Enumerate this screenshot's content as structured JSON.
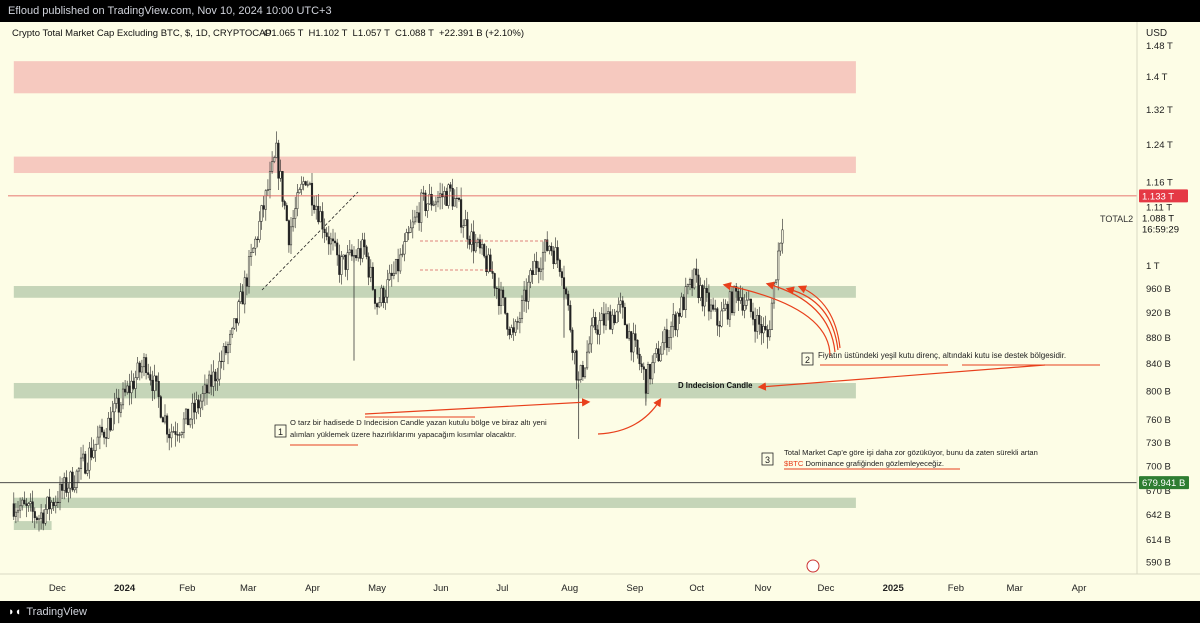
{
  "publisher": "Efloud published on TradingView.com, Nov 10, 2024 10:00 UTC+3",
  "brand": "TradingView",
  "legend": {
    "symbol": "Crypto Total Market Cap Excluding BTC, $, 1D, CRYPTOCAP",
    "ohlc": "O1.065 T  H1.102 T  L1.057 T  C1.088 T  +22.391 B (+2.10%)"
  },
  "currency_label": "USD",
  "series_label": "TOTAL2",
  "price_tags": {
    "resistance": "1.133 T",
    "current": "1.088 T",
    "countdown": "16:59:29",
    "support": "679.941 B"
  },
  "annotations": {
    "note1_num": "1",
    "note1_line1": "O tarz bir hadisede D Indecision Candle yazan kutulu bölge ve biraz altı yeni",
    "note1_line2": "alımları yüklemek üzere hazırlıklarımı yapacağım kısımlar olacaktır.",
    "note2_num": "2",
    "note2_text": "Fiyatın üstündeki yeşil kutu direnç, altındaki kutu ise destek bölgesidir.",
    "note3_num": "3",
    "note3_line1": "Total Market Cap'e göre işi daha zor gözüküyor, bunu da zaten sürekli artan",
    "note3_tag": "$BTC",
    "note3_line2": " Dominance grafiğinden gözlemleyeceğiz.",
    "indecision": "D Indecision Candle"
  },
  "colors": {
    "up": "#1a1a1a",
    "down": "#1a1a1a",
    "red_zone": "#f6c9bf",
    "green_zone": "#c5d5b8",
    "arrow": "#e8401c",
    "resistance_line": "#e04a4a",
    "tag_red": "#e53945",
    "tag_green": "#2e7d32"
  },
  "chart_data": {
    "type": "candlestick",
    "title": "Crypto Total Market Cap Excluding BTC, $, 1D, CRYPTOCAP",
    "scale": "log",
    "y_unit": "USD",
    "y_ticks": [
      "1.48 T",
      "1.4 T",
      "1.32 T",
      "1.24 T",
      "1.16 T",
      "1.11 T",
      "1.088 T",
      "1 T",
      "960 B",
      "920 B",
      "880 B",
      "840 B",
      "800 B",
      "760 B",
      "730 B",
      "700 B",
      "670 B",
      "642 B",
      "614 B",
      "590 B"
    ],
    "y_tick_values": [
      1480,
      1400,
      1320,
      1240,
      1160,
      1110,
      1088,
      1000,
      960,
      920,
      880,
      840,
      800,
      760,
      730,
      700,
      670,
      642,
      614,
      590
    ],
    "x_ticks": [
      "Dec",
      "2024",
      "Feb",
      "Mar",
      "Apr",
      "May",
      "Jun",
      "Jul",
      "Aug",
      "Sep",
      "Oct",
      "Nov",
      "Dec",
      "2025",
      "Feb",
      "Mar",
      "Apr"
    ],
    "x_tick_dates": [
      "2023-12-01",
      "2024-01-01",
      "2024-02-01",
      "2024-03-01",
      "2024-04-01",
      "2024-05-01",
      "2024-06-01",
      "2024-07-01",
      "2024-08-01",
      "2024-09-01",
      "2024-10-01",
      "2024-11-01",
      "2024-12-01",
      "2025-01-01",
      "2025-02-01",
      "2025-03-01",
      "2025-04-01"
    ],
    "x_range": [
      "2023-11-10",
      "2025-04-15"
    ],
    "zones": [
      {
        "kind": "resistance",
        "from": "2023-11-10",
        "to": "2024-12-15",
        "low": 1360,
        "high": 1440
      },
      {
        "kind": "resistance",
        "from": "2023-11-10",
        "to": "2024-12-15",
        "low": 1180,
        "high": 1215
      },
      {
        "kind": "range",
        "from": "2023-11-10",
        "to": "2024-12-15",
        "low": 945,
        "high": 965
      },
      {
        "kind": "support",
        "from": "2023-11-10",
        "to": "2024-12-15",
        "low": 790,
        "high": 812
      },
      {
        "kind": "support",
        "from": "2023-11-10",
        "to": "2024-12-15",
        "low": 650,
        "high": 662
      },
      {
        "kind": "support",
        "from": "2023-11-10",
        "to": "2023-11-28",
        "low": 625,
        "high": 635
      }
    ],
    "levels": [
      {
        "label": "1.133 T",
        "value": 1133
      },
      {
        "label": "679.941 B",
        "value": 679.941
      }
    ],
    "ohlc_anchors": [
      [
        "2023-11-10",
        655
      ],
      [
        "2023-11-22",
        640
      ],
      [
        "2023-12-10",
        690
      ],
      [
        "2023-12-26",
        760
      ],
      [
        "2024-01-06",
        815
      ],
      [
        "2024-01-12",
        845
      ],
      [
        "2024-01-23",
        745
      ],
      [
        "2024-02-01",
        760
      ],
      [
        "2024-02-10",
        800
      ],
      [
        "2024-02-22",
        880
      ],
      [
        "2024-03-05",
        1060
      ],
      [
        "2024-03-14",
        1220
      ],
      [
        "2024-03-20",
        1060
      ],
      [
        "2024-03-28",
        1175
      ],
      [
        "2024-04-13",
        1000
      ],
      [
        "2024-04-25",
        1030
      ],
      [
        "2024-05-01",
        935
      ],
      [
        "2024-05-10",
        990
      ],
      [
        "2024-05-22",
        1115
      ],
      [
        "2024-06-05",
        1140
      ],
      [
        "2024-06-15",
        1050
      ],
      [
        "2024-06-25",
        985
      ],
      [
        "2024-07-05",
        880
      ],
      [
        "2024-07-15",
        1000
      ],
      [
        "2024-07-22",
        1040
      ],
      [
        "2024-07-28",
        1000
      ],
      [
        "2024-08-05",
        810
      ],
      [
        "2024-08-12",
        895
      ],
      [
        "2024-08-25",
        925
      ],
      [
        "2024-09-06",
        815
      ],
      [
        "2024-09-14",
        870
      ],
      [
        "2024-09-22",
        925
      ],
      [
        "2024-09-29",
        975
      ],
      [
        "2024-10-10",
        905
      ],
      [
        "2024-10-20",
        955
      ],
      [
        "2024-10-28",
        910
      ],
      [
        "2024-11-03",
        880
      ],
      [
        "2024-11-10",
        1088
      ]
    ]
  }
}
